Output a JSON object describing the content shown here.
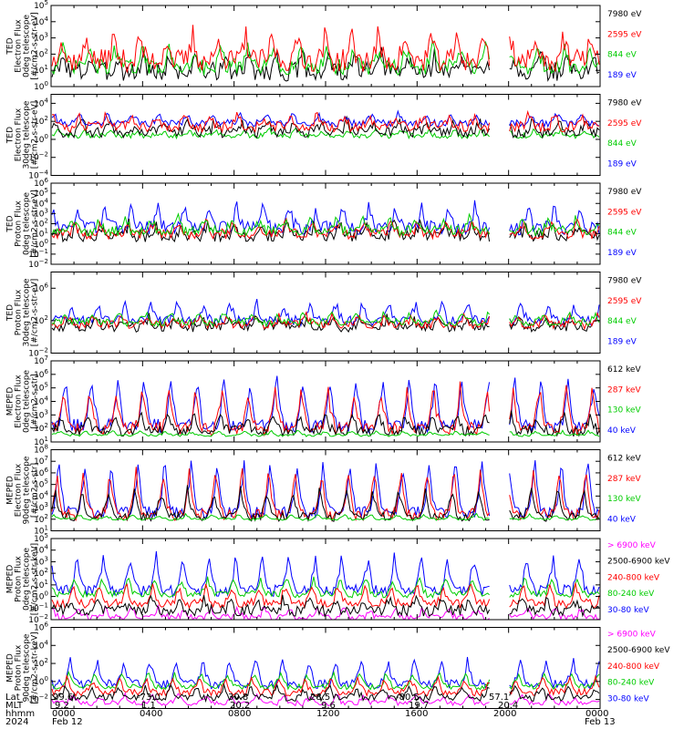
{
  "chart_data": [
    {
      "type": "line",
      "ylabel": [
        "TED",
        "Electron Flux",
        "0deg telescope",
        "[#/cm2-s-str-eV]"
      ],
      "yscale": "log",
      "ylim_exp": [
        0,
        5
      ],
      "ytick_exps": [
        0,
        1,
        2,
        3,
        4,
        5
      ],
      "legend": [
        {
          "label": "7980 eV",
          "color": "#000000"
        },
        {
          "label": "2595 eV",
          "color": "#ff0000"
        },
        {
          "label": "844 eV",
          "color": "#00cc00"
        },
        {
          "label": "189 eV",
          "color": "#0000ff"
        }
      ],
      "series": [
        {
          "color": "#000000",
          "base": 0.9,
          "amp": 1.0,
          "noise": 0.6
        },
        {
          "color": "#00cc00",
          "base": 1.2,
          "amp": 1.2,
          "noise": 0.5
        },
        {
          "color": "#ff0000",
          "base": 1.6,
          "amp": 1.6,
          "noise": 0.7
        }
      ]
    },
    {
      "type": "line",
      "ylabel": [
        "TED",
        "Electron Flux",
        "30deg telescope",
        "[#/cm2-s-str-eV]"
      ],
      "yscale": "log",
      "ylim_exp": [
        -4,
        5
      ],
      "ytick_exps": [
        -4,
        -2,
        0,
        2,
        4
      ],
      "legend": [
        {
          "label": "7980 eV",
          "color": "#000000"
        },
        {
          "label": "2595 eV",
          "color": "#ff0000"
        },
        {
          "label": "844 eV",
          "color": "#00cc00"
        },
        {
          "label": "189 eV",
          "color": "#0000ff"
        }
      ],
      "series": [
        {
          "color": "#00cc00",
          "base": 0.4,
          "amp": 0.6,
          "noise": 0.3
        },
        {
          "color": "#000000",
          "base": 0.8,
          "amp": 1.2,
          "noise": 0.6
        },
        {
          "color": "#0000ff",
          "base": 1.8,
          "amp": 1.0,
          "noise": 0.4
        },
        {
          "color": "#ff0000",
          "base": 1.4,
          "amp": 1.3,
          "noise": 0.6
        }
      ]
    },
    {
      "type": "line",
      "ylabel": [
        "TED",
        "Proton Flux",
        "0deg telescope",
        "[#/cm2-s-str-eV]"
      ],
      "yscale": "log",
      "ylim_exp": [
        -2,
        6
      ],
      "ytick_exps": [
        -2,
        -1,
        0,
        1,
        2,
        3,
        4,
        5,
        6
      ],
      "legend": [
        {
          "label": "7980 eV",
          "color": "#000000"
        },
        {
          "label": "2595 eV",
          "color": "#ff0000"
        },
        {
          "label": "844 eV",
          "color": "#00cc00"
        },
        {
          "label": "189 eV",
          "color": "#0000ff"
        }
      ],
      "series": [
        {
          "color": "#0000ff",
          "base": 1.6,
          "amp": 2.2,
          "noise": 0.7
        },
        {
          "color": "#000000",
          "base": 0.8,
          "amp": 1.2,
          "noise": 0.6
        },
        {
          "color": "#ff0000",
          "base": 1.0,
          "amp": 1.2,
          "noise": 0.5
        },
        {
          "color": "#00cc00",
          "base": 1.3,
          "amp": 1.2,
          "noise": 0.5
        }
      ]
    },
    {
      "type": "line",
      "ylabel": [
        "TED",
        "Proton Flux",
        "30deg telescope",
        "[#/cm2-s-str-eV]"
      ],
      "yscale": "log",
      "ylim_exp": [
        -2,
        8
      ],
      "ytick_exps": [
        -2,
        2,
        6
      ],
      "legend": [
        {
          "label": "7980 eV",
          "color": "#000000"
        },
        {
          "label": "2595 eV",
          "color": "#ff0000"
        },
        {
          "label": "844 eV",
          "color": "#00cc00"
        },
        {
          "label": "189 eV",
          "color": "#0000ff"
        }
      ],
      "series": [
        {
          "color": "#0000ff",
          "base": 2.0,
          "amp": 2.2,
          "noise": 0.6
        },
        {
          "color": "#000000",
          "base": 1.2,
          "amp": 1.2,
          "noise": 0.6
        },
        {
          "color": "#ff0000",
          "base": 1.5,
          "amp": 1.2,
          "noise": 0.5
        },
        {
          "color": "#00cc00",
          "base": 1.8,
          "amp": 1.2,
          "noise": 0.5
        }
      ]
    },
    {
      "type": "line",
      "ylabel": [
        "MEPED",
        "Electron Flux",
        "0deg telescope",
        "[#/cm2-s-str]"
      ],
      "yscale": "log",
      "ylim_exp": [
        1,
        7
      ],
      "ytick_exps": [
        1,
        2,
        3,
        4,
        5,
        6,
        7
      ],
      "legend": [
        {
          "label": "612 keV",
          "color": "#000000"
        },
        {
          "label": "287 keV",
          "color": "#ff0000"
        },
        {
          "label": "130 keV",
          "color": "#00cc00"
        },
        {
          "label": "40 keV",
          "color": "#0000ff"
        }
      ],
      "series": [
        {
          "color": "#0000ff",
          "base": 2.2,
          "amp": 3.6,
          "noise": 0.5
        },
        {
          "color": "#ff0000",
          "base": 2.0,
          "amp": 3.0,
          "noise": 0.5
        },
        {
          "color": "#000000",
          "base": 1.8,
          "amp": 1.2,
          "noise": 0.4
        },
        {
          "color": "#00cc00",
          "base": 1.5,
          "amp": 0.3,
          "noise": 0.1
        }
      ]
    },
    {
      "type": "line",
      "ylabel": [
        "MEPED",
        "Electron Flux",
        "90deg telescope",
        "[#/cm2-s-str]"
      ],
      "yscale": "log",
      "ylim_exp": [
        1,
        8
      ],
      "ytick_exps": [
        1,
        2,
        3,
        4,
        5,
        6,
        7,
        8
      ],
      "legend": [
        {
          "label": "612 keV",
          "color": "#000000"
        },
        {
          "label": "287 keV",
          "color": "#ff0000"
        },
        {
          "label": "130 keV",
          "color": "#00cc00"
        },
        {
          "label": "40 keV",
          "color": "#0000ff"
        }
      ],
      "series": [
        {
          "color": "#0000ff",
          "base": 2.6,
          "amp": 4.4,
          "noise": 0.5
        },
        {
          "color": "#ff0000",
          "base": 2.4,
          "amp": 3.8,
          "noise": 0.5
        },
        {
          "color": "#000000",
          "base": 2.2,
          "amp": 2.4,
          "noise": 0.4
        },
        {
          "color": "#00cc00",
          "base": 2.0,
          "amp": 0.4,
          "noise": 0.1
        }
      ]
    },
    {
      "type": "line",
      "ylabel": [
        "MEPED",
        "Proton Flux",
        "0deg telescope",
        "[#/cm2-s-str-keV]"
      ],
      "yscale": "log",
      "ylim_exp": [
        -2,
        5
      ],
      "ytick_exps": [
        -2,
        -1,
        0,
        1,
        2,
        3,
        4,
        5
      ],
      "legend": [
        {
          "label": "> 6900 keV",
          "color": "#ff00ff"
        },
        {
          "label": "2500-6900 keV",
          "color": "#000000"
        },
        {
          "label": "240-800 keV",
          "color": "#ff0000"
        },
        {
          "label": "80-240 keV",
          "color": "#00cc00"
        },
        {
          "label": "30-80 keV",
          "color": "#0000ff"
        }
      ],
      "series": [
        {
          "color": "#ff00ff",
          "base": -1.8,
          "amp": 0.8,
          "noise": 0.3
        },
        {
          "color": "#0000ff",
          "base": 0.5,
          "amp": 3.0,
          "noise": 0.5
        },
        {
          "color": "#00cc00",
          "base": 0.2,
          "amp": 1.4,
          "noise": 0.3
        },
        {
          "color": "#ff0000",
          "base": -0.6,
          "amp": 1.6,
          "noise": 0.4
        },
        {
          "color": "#000000",
          "base": -1.2,
          "amp": 1.0,
          "noise": 0.5
        }
      ]
    },
    {
      "type": "line",
      "ylabel": [
        "MEPED",
        "Proton Flux",
        "90deg telescope",
        "[#/cm2-s-str-keV]"
      ],
      "yscale": "log",
      "ylim_exp": [
        -3,
        6
      ],
      "ytick_exps": [
        -2,
        0,
        2,
        4,
        6
      ],
      "legend": [
        {
          "label": "> 6900 keV",
          "color": "#ff00ff"
        },
        {
          "label": "2500-6900 keV",
          "color": "#000000"
        },
        {
          "label": "240-800 keV",
          "color": "#ff0000"
        },
        {
          "label": "80-240 keV",
          "color": "#00cc00"
        },
        {
          "label": "30-80 keV",
          "color": "#0000ff"
        }
      ],
      "series": [
        {
          "color": "#ff00ff",
          "base": -2.4,
          "amp": 0.9,
          "noise": 0.3
        },
        {
          "color": "#0000ff",
          "base": -0.3,
          "amp": 2.8,
          "noise": 0.5
        },
        {
          "color": "#00cc00",
          "base": -0.6,
          "amp": 1.6,
          "noise": 0.3
        },
        {
          "color": "#ff0000",
          "base": -1.2,
          "amp": 1.6,
          "noise": 0.4
        },
        {
          "color": "#000000",
          "base": -1.8,
          "amp": 1.2,
          "noise": 0.4
        }
      ]
    }
  ],
  "footer": {
    "row_labels": [
      "Lat",
      "MLT",
      "hhmm",
      "2024"
    ],
    "lat": [
      "29.6",
      "-73.0",
      "30.8",
      "28.5",
      "-80.5",
      "57.1"
    ],
    "mlt": [
      "9.2",
      "1.1",
      "20.2",
      "9.6",
      "19.7",
      "20.4"
    ],
    "hhmm": [
      "0000",
      "0400",
      "0800",
      "1200",
      "1600",
      "2000",
      "0000"
    ],
    "dates": [
      "Feb 12",
      "Feb 13"
    ]
  }
}
